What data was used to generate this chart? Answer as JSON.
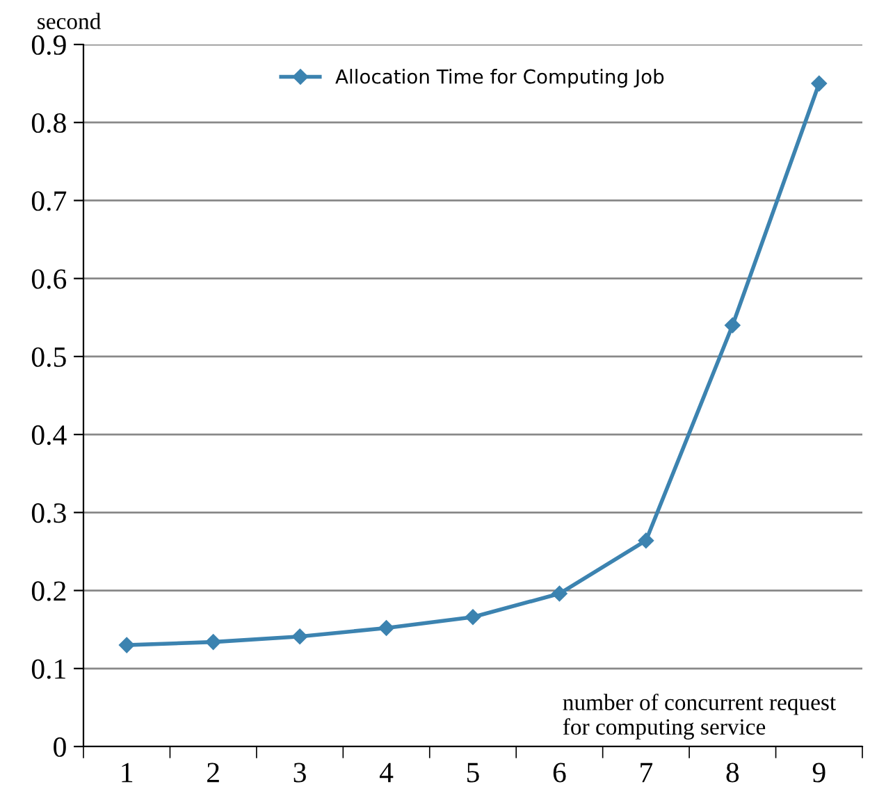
{
  "chart_data": {
    "type": "line",
    "ylabel": "second",
    "xlabel": "number of concurrent request\nfor computing service",
    "categories": [
      "1",
      "2",
      "3",
      "4",
      "5",
      "6",
      "7",
      "8",
      "9"
    ],
    "series": [
      {
        "name": "Allocation Time for Computing Job",
        "color": "#3c83b0",
        "values": [
          0.13,
          0.134,
          0.141,
          0.152,
          0.166,
          0.196,
          0.264,
          0.54,
          0.85
        ]
      }
    ],
    "ylim": [
      0,
      0.9
    ],
    "yticks": [
      0,
      0.1,
      0.2,
      0.3,
      0.4,
      0.5,
      0.6,
      0.7,
      0.8,
      0.9
    ],
    "grid": "y",
    "legend": "top",
    "marker": "diamond",
    "line_style": "solid"
  }
}
